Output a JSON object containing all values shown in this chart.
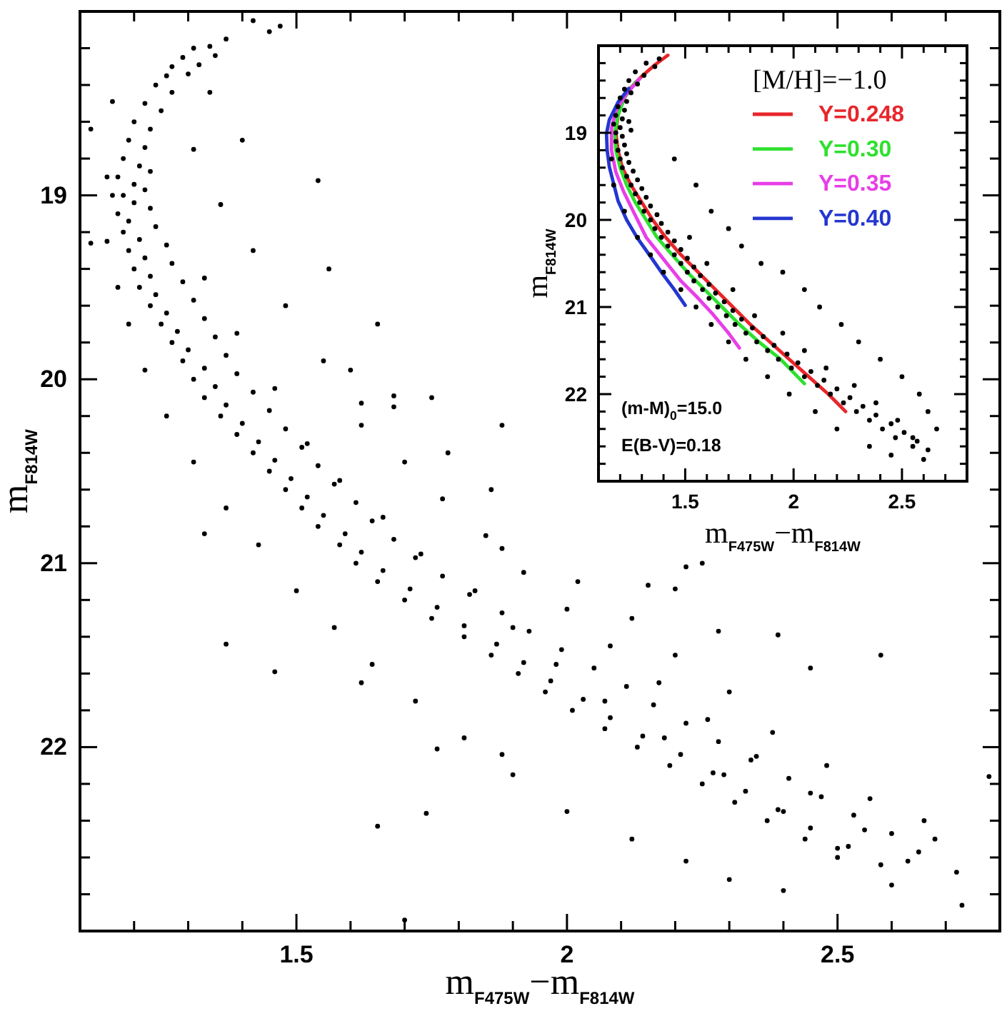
{
  "chart_data": [
    {
      "type": "scatter",
      "xlabel": "m$_{F475W}$−m$_{F814W}$",
      "ylabel": "m$_{F814W}$",
      "xlim": [
        1.1,
        2.8
      ],
      "ylim": [
        23,
        18
      ],
      "xticks": [
        {
          "value": 1.2,
          "label": null
        },
        {
          "value": 1.3,
          "label": null
        },
        {
          "value": 1.4,
          "label": null
        },
        1.5,
        {
          "value": 1.6,
          "label": null
        },
        {
          "value": 1.7,
          "label": null
        },
        {
          "value": 1.8,
          "label": null
        },
        {
          "value": 1.9,
          "label": null
        },
        2,
        {
          "value": 2.1,
          "label": null
        },
        {
          "value": 2.2,
          "label": null
        },
        {
          "value": 2.3,
          "label": null
        },
        {
          "value": 2.4,
          "label": null
        },
        2.5,
        {
          "value": 2.6,
          "label": null
        },
        {
          "value": 2.7,
          "label": null
        }
      ],
      "yticks": [
        {
          "value": 18.2,
          "label": null
        },
        {
          "value": 18.4,
          "label": null
        },
        {
          "value": 18.6,
          "label": null
        },
        {
          "value": 18.8,
          "label": null
        },
        19,
        {
          "value": 19.2,
          "label": null
        },
        {
          "value": 19.4,
          "label": null
        },
        {
          "value": 19.6,
          "label": null
        },
        {
          "value": 19.8,
          "label": null
        },
        20,
        {
          "value": 20.2,
          "label": null
        },
        {
          "value": 20.4,
          "label": null
        },
        {
          "value": 20.6,
          "label": null
        },
        {
          "value": 20.8,
          "label": null
        },
        21,
        {
          "value": 21.2,
          "label": null
        },
        {
          "value": 21.4,
          "label": null
        },
        {
          "value": 21.6,
          "label": null
        },
        {
          "value": 21.8,
          "label": null
        },
        22,
        {
          "value": 22.2,
          "label": null
        },
        {
          "value": 22.4,
          "label": null
        },
        {
          "value": 22.6,
          "label": null
        },
        {
          "value": 22.8,
          "label": null
        }
      ],
      "marker": "circle",
      "color": "#000000",
      "x": [
        1.37,
        1.34,
        1.31,
        1.35,
        1.29,
        1.32,
        1.27,
        1.3,
        1.26,
        1.24,
        1.27,
        1.22,
        1.25,
        1.2,
        1.23,
        1.19,
        1.22,
        1.18,
        1.21,
        1.17,
        1.2,
        1.23,
        1.18,
        1.2,
        1.22,
        1.17,
        1.19,
        1.23,
        1.18,
        1.21,
        1.24,
        1.19,
        1.22,
        1.26,
        1.2,
        1.23,
        1.27,
        1.21,
        1.24,
        1.29,
        1.23,
        1.26,
        1.31,
        1.25,
        1.28,
        1.33,
        1.27,
        1.3,
        1.35,
        1.29,
        1.33,
        1.37,
        1.31,
        1.35,
        1.39,
        1.33,
        1.37,
        1.42,
        1.36,
        1.4,
        1.45,
        1.39,
        1.43,
        1.48,
        1.42,
        1.46,
        1.51,
        1.45,
        1.49,
        1.54,
        1.48,
        1.52,
        1.57,
        1.51,
        1.55,
        1.61,
        1.54,
        1.59,
        1.64,
        1.58,
        1.62,
        1.68,
        1.61,
        1.66,
        1.72,
        1.65,
        1.71,
        1.77,
        1.7,
        1.76,
        1.82,
        1.75,
        1.81,
        1.88,
        1.81,
        1.87,
        1.93,
        1.86,
        1.92,
        1.99,
        1.91,
        1.97,
        2.05,
        1.96,
        2.03,
        2.11,
        2.01,
        2.08,
        2.16,
        2.07,
        2.14,
        2.22,
        2.13,
        2.21,
        2.28,
        2.19,
        2.27,
        2.34,
        2.25,
        2.33,
        2.41,
        2.31,
        2.39,
        2.47,
        2.37,
        2.45,
        2.53,
        2.44,
        2.52,
        2.6,
        2.5,
        2.58,
        2.65,
        1.31,
        1.36,
        1.42,
        1.33,
        1.48,
        1.39,
        1.55,
        1.46,
        1.62,
        1.52,
        1.7,
        1.58,
        1.77,
        1.66,
        1.85,
        1.73,
        1.92,
        1.83,
        2.0,
        1.9,
        2.08,
        1.98,
        2.17,
        2.07,
        2.26,
        2.18,
        2.35,
        2.29,
        2.45,
        2.4,
        2.55,
        2.5,
        2.63,
        2.68,
        2.72,
        2.6,
        2.66,
        2.56,
        2.48,
        2.38,
        2.3,
        2.2,
        2.12,
        2.02,
        1.88,
        1.86,
        1.78,
        1.68,
        1.6,
        1.65,
        1.56,
        1.16,
        1.15,
        1.17,
        1.19,
        1.22,
        1.26,
        1.31,
        1.37,
        1.43,
        1.5,
        1.57,
        1.64,
        1.72,
        1.81,
        1.9,
        2.0,
        2.12,
        2.22,
        2.3,
        2.4,
        1.42,
        1.45,
        1.47,
        1.16,
        1.4,
        1.54,
        1.34,
        1.12,
        1.15,
        1.12,
        1.68,
        1.75,
        1.62,
        1.33,
        1.37,
        1.46,
        1.74,
        1.65,
        1.7,
        1.62,
        1.76,
        1.88,
        2.73,
        2.78,
        2.58,
        2.39,
        2.45,
        2.15,
        2.22,
        2.28,
        2.2,
        1.88,
        2.25
      ],
      "values": [
        18.15,
        18.19,
        18.2,
        18.24,
        18.25,
        18.29,
        18.3,
        18.34,
        18.35,
        18.4,
        18.44,
        18.5,
        18.54,
        18.6,
        18.64,
        18.7,
        18.74,
        18.8,
        18.84,
        18.9,
        18.94,
        18.87,
        19.0,
        19.04,
        18.97,
        19.1,
        19.14,
        19.07,
        19.2,
        19.24,
        19.17,
        19.3,
        19.34,
        19.27,
        19.4,
        19.44,
        19.37,
        19.5,
        19.54,
        19.47,
        19.6,
        19.64,
        19.57,
        19.7,
        19.74,
        19.67,
        19.8,
        19.84,
        19.77,
        19.9,
        19.94,
        19.87,
        20.0,
        20.04,
        19.97,
        20.1,
        20.14,
        20.07,
        20.2,
        20.24,
        20.17,
        20.3,
        20.34,
        20.27,
        20.4,
        20.44,
        20.37,
        20.5,
        20.54,
        20.47,
        20.6,
        20.64,
        20.57,
        20.7,
        20.74,
        20.67,
        20.8,
        20.84,
        20.77,
        20.9,
        20.94,
        20.87,
        21.0,
        21.04,
        20.97,
        21.1,
        21.14,
        21.07,
        21.2,
        21.24,
        21.17,
        21.3,
        21.34,
        21.27,
        21.4,
        21.44,
        21.37,
        21.5,
        21.54,
        21.47,
        21.6,
        21.64,
        21.57,
        21.7,
        21.74,
        21.67,
        21.8,
        21.84,
        21.77,
        21.9,
        21.94,
        21.87,
        22.0,
        22.04,
        21.97,
        22.1,
        22.14,
        22.07,
        22.2,
        22.24,
        22.17,
        22.3,
        22.34,
        22.27,
        22.4,
        22.44,
        22.37,
        22.5,
        22.54,
        22.47,
        22.6,
        22.64,
        22.57,
        18.75,
        19.05,
        19.3,
        19.45,
        19.6,
        19.75,
        19.9,
        20.05,
        20.25,
        20.35,
        20.45,
        20.55,
        20.65,
        20.75,
        20.85,
        20.95,
        21.05,
        21.15,
        21.25,
        21.35,
        21.45,
        21.55,
        21.65,
        21.75,
        21.85,
        21.95,
        22.05,
        22.15,
        22.25,
        22.35,
        22.45,
        22.55,
        22.62,
        22.5,
        22.68,
        22.75,
        22.4,
        22.28,
        22.1,
        21.92,
        21.7,
        21.5,
        21.3,
        21.1,
        20.92,
        20.6,
        20.4,
        20.15,
        19.95,
        19.7,
        19.4,
        19.0,
        19.25,
        19.5,
        19.7,
        19.95,
        20.2,
        20.45,
        20.7,
        20.9,
        21.15,
        21.35,
        21.55,
        21.75,
        21.95,
        22.15,
        22.35,
        22.5,
        22.62,
        22.72,
        22.78,
        18.05,
        18.11,
        18.08,
        18.49,
        18.7,
        18.92,
        18.44,
        18.64,
        18.9,
        19.26,
        20.09,
        20.1,
        20.13,
        20.84,
        21.44,
        21.59,
        22.36,
        22.43,
        22.94,
        21.65,
        22.01,
        22.04,
        22.86,
        22.16,
        21.5,
        21.39,
        21.57,
        21.12,
        21.02,
        21.37,
        21.14,
        20.25,
        21.0
      ]
    },
    {
      "type": "scatter",
      "xlabel": "m$_{F475W}$−m$_{F814W}$",
      "ylabel": "m$_{F814W}$",
      "xlim": [
        1.1,
        2.8
      ],
      "ylim": [
        23,
        18
      ],
      "xticks": [
        {
          "value": 1.2,
          "label": null
        },
        {
          "value": 1.3,
          "label": null
        },
        {
          "value": 1.4,
          "label": null
        },
        1.5,
        {
          "value": 1.6,
          "label": null
        },
        {
          "value": 1.7,
          "label": null
        },
        {
          "value": 1.8,
          "label": null
        },
        {
          "value": 1.9,
          "label": null
        },
        2,
        {
          "value": 2.1,
          "label": null
        },
        {
          "value": 2.2,
          "label": null
        },
        {
          "value": 2.3,
          "label": null
        },
        {
          "value": 2.4,
          "label": null
        },
        2.5,
        {
          "value": 2.6,
          "label": null
        },
        {
          "value": 2.7,
          "label": null
        }
      ],
      "yticks": [
        {
          "value": 18.2,
          "label": null
        },
        {
          "value": 18.4,
          "label": null
        },
        {
          "value": 18.6,
          "label": null
        },
        {
          "value": 18.8,
          "label": null
        },
        19,
        {
          "value": 19.2,
          "label": null
        },
        {
          "value": 19.4,
          "label": null
        },
        {
          "value": 19.6,
          "label": null
        },
        {
          "value": 19.8,
          "label": null
        },
        20,
        {
          "value": 20.2,
          "label": null
        },
        {
          "value": 20.4,
          "label": null
        },
        {
          "value": 20.6,
          "label": null
        },
        {
          "value": 20.8,
          "label": null
        },
        21,
        {
          "value": 21.2,
          "label": null
        },
        {
          "value": 21.4,
          "label": null
        },
        {
          "value": 21.6,
          "label": null
        },
        {
          "value": 21.8,
          "label": null
        },
        22,
        {
          "value": 22.2,
          "label": null
        },
        {
          "value": 22.4,
          "label": null
        },
        {
          "value": 22.6,
          "label": null
        },
        {
          "value": 22.8,
          "label": null
        }
      ],
      "legend": "top right",
      "legend_title": "[M/H]=−1.0",
      "annotations": [
        "(m-M)$_{0}$=15.0",
        "E(B-V)=0.18"
      ],
      "series": [
        {
          "color": "#000000",
          "marker": "circle",
          "x": [
            1.38,
            1.32,
            1.36,
            1.27,
            1.31,
            1.24,
            1.28,
            1.22,
            1.25,
            1.2,
            1.23,
            1.19,
            1.22,
            1.18,
            1.21,
            1.17,
            1.2,
            1.24,
            1.18,
            1.21,
            1.25,
            1.18,
            1.22,
            1.19,
            1.23,
            1.2,
            1.24,
            1.21,
            1.26,
            1.23,
            1.28,
            1.25,
            1.3,
            1.27,
            1.32,
            1.29,
            1.34,
            1.31,
            1.37,
            1.34,
            1.39,
            1.36,
            1.42,
            1.39,
            1.45,
            1.42,
            1.48,
            1.45,
            1.51,
            1.48,
            1.54,
            1.51,
            1.57,
            1.54,
            1.61,
            1.58,
            1.64,
            1.61,
            1.68,
            1.65,
            1.72,
            1.69,
            1.76,
            1.73,
            1.81,
            1.78,
            1.86,
            1.83,
            1.91,
            1.88,
            1.97,
            1.93,
            2.02,
            1.99,
            2.08,
            2.05,
            2.14,
            2.11,
            2.2,
            2.17,
            2.26,
            2.23,
            2.32,
            2.29,
            2.38,
            2.35,
            2.45,
            2.41,
            2.51,
            2.47,
            2.57,
            2.55,
            2.62,
            1.45,
            1.55,
            1.62,
            1.7,
            1.76,
            1.85,
            1.95,
            2.05,
            2.12,
            2.22,
            2.3,
            2.4,
            2.5,
            2.58,
            2.62,
            2.66,
            2.6,
            2.45,
            2.35,
            2.2,
            2.1,
            1.98,
            1.88,
            1.78,
            1.7,
            1.62,
            1.55,
            1.48,
            1.4,
            1.34,
            1.28,
            1.22,
            1.17,
            1.16,
            1.52,
            1.6,
            1.72,
            1.82,
            1.95,
            2.05,
            2.15,
            2.28,
            2.38,
            2.48,
            2.55
          ],
          "values": [
            18.15,
            18.2,
            18.24,
            18.3,
            18.34,
            18.4,
            18.44,
            18.5,
            18.54,
            18.6,
            18.64,
            18.7,
            18.74,
            18.8,
            18.84,
            18.9,
            18.94,
            18.87,
            19.0,
            19.04,
            18.97,
            19.1,
            19.14,
            19.2,
            19.24,
            19.3,
            19.34,
            19.4,
            19.44,
            19.5,
            19.54,
            19.6,
            19.64,
            19.7,
            19.74,
            19.8,
            19.84,
            19.9,
            19.94,
            20.0,
            20.04,
            20.1,
            20.14,
            20.2,
            20.24,
            20.3,
            20.34,
            20.4,
            20.44,
            20.5,
            20.54,
            20.6,
            20.64,
            20.7,
            20.74,
            20.8,
            20.84,
            20.9,
            20.94,
            21.0,
            21.04,
            21.1,
            21.14,
            21.2,
            21.24,
            21.3,
            21.34,
            21.4,
            21.44,
            21.5,
            21.54,
            21.6,
            21.64,
            21.7,
            21.74,
            21.8,
            21.84,
            21.9,
            21.94,
            22.0,
            22.04,
            22.1,
            22.14,
            22.2,
            22.24,
            22.3,
            22.34,
            22.4,
            22.44,
            22.5,
            22.54,
            22.6,
            22.64,
            19.3,
            19.6,
            19.9,
            20.1,
            20.3,
            20.5,
            20.6,
            20.8,
            21.0,
            21.2,
            21.4,
            21.6,
            21.8,
            22.0,
            22.2,
            22.4,
            22.75,
            22.7,
            22.6,
            22.4,
            22.2,
            22.0,
            21.8,
            21.6,
            21.4,
            21.2,
            21.0,
            20.8,
            20.6,
            20.4,
            20.2,
            19.9,
            19.6,
            19.3,
            20.2,
            20.5,
            20.8,
            21.1,
            21.3,
            21.5,
            21.7,
            21.9,
            22.1,
            22.3,
            22.5
          ]
        },
        {
          "type": "line",
          "name": "Y=0.248",
          "color": "#e8262b",
          "x": [
            1.42,
            1.36,
            1.3,
            1.25,
            1.215,
            1.19,
            1.18,
            1.19,
            1.21,
            1.25,
            1.3,
            1.35,
            1.41,
            1.48,
            1.56,
            1.64,
            1.72,
            1.8,
            1.89,
            1.98,
            2.07,
            2.16,
            2.24
          ],
          "values": [
            18.11,
            18.22,
            18.35,
            18.48,
            18.6,
            18.8,
            19.0,
            19.2,
            19.4,
            19.6,
            19.8,
            20.0,
            20.2,
            20.4,
            20.6,
            20.8,
            21.0,
            21.2,
            21.4,
            21.6,
            21.8,
            22.0,
            22.2
          ]
        },
        {
          "type": "line",
          "name": "Y=0.30",
          "color": "#2fe02f",
          "x": [
            1.27,
            1.22,
            1.19,
            1.175,
            1.18,
            1.2,
            1.23,
            1.27,
            1.32,
            1.37,
            1.44,
            1.51,
            1.59,
            1.67,
            1.75,
            1.84,
            1.94,
            2.05
          ],
          "values": [
            18.42,
            18.6,
            18.8,
            19.0,
            19.2,
            19.4,
            19.6,
            19.8,
            20.0,
            20.2,
            20.4,
            20.6,
            20.8,
            21.0,
            21.2,
            21.4,
            21.6,
            21.88
          ]
        },
        {
          "type": "line",
          "name": "Y=0.35",
          "color": "#e83ee8",
          "x": [
            1.29,
            1.23,
            1.18,
            1.16,
            1.16,
            1.18,
            1.215,
            1.26,
            1.32,
            1.4,
            1.48,
            1.56,
            1.63,
            1.7,
            1.75
          ],
          "values": [
            18.38,
            18.55,
            18.75,
            18.95,
            19.2,
            19.45,
            19.67,
            19.9,
            20.2,
            20.45,
            20.7,
            20.9,
            21.09,
            21.3,
            21.47
          ]
        },
        {
          "type": "line",
          "name": "Y=0.40",
          "color": "#2436d0",
          "x": [
            1.24,
            1.19,
            1.15,
            1.137,
            1.14,
            1.15,
            1.19,
            1.23,
            1.28,
            1.34,
            1.39,
            1.45,
            1.5
          ],
          "values": [
            18.49,
            18.65,
            18.85,
            19.01,
            19.2,
            19.39,
            19.78,
            20.0,
            20.21,
            20.42,
            20.6,
            20.8,
            20.98
          ]
        }
      ]
    }
  ]
}
